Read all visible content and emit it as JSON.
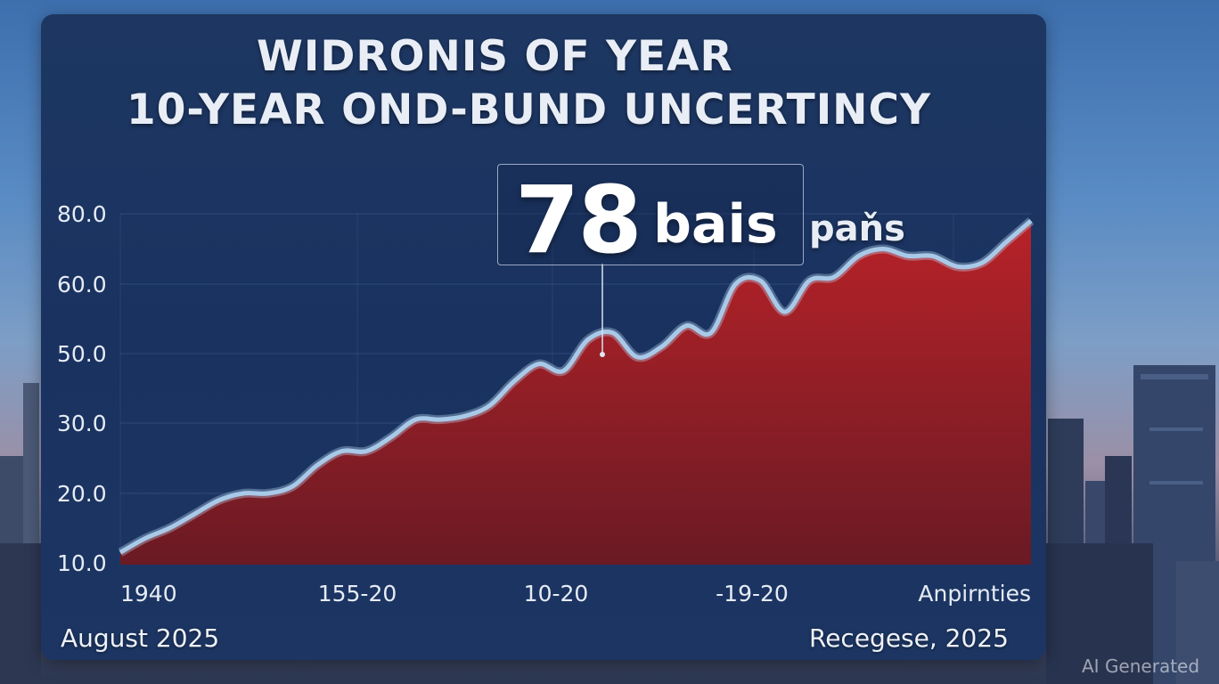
{
  "title_line1": "WIDRONIS OF YEAR",
  "title_line2": "10-YEAR OND-BUND UNCERTINCY",
  "callout": {
    "value": "78",
    "unit": "bais",
    "extra": "paňs"
  },
  "footer": {
    "left": "August 2025",
    "right": "Recegese, 2025"
  },
  "watermark": "AI Generated",
  "colors": {
    "panel": "#1b3461",
    "area_top": "#b82228",
    "area_bottom": "#6a1a24",
    "line": "#a9c9e8"
  },
  "chart_data": {
    "type": "area",
    "title": "WIDRONIS OF YEAR 10-YEAR OND-BUND UNCERTINCY",
    "xlabel": "",
    "ylabel": "",
    "y_ticks": [
      "80.0",
      "60.0",
      "50.0",
      "30.0",
      "20.0",
      "10.0"
    ],
    "x_tick_labels": [
      "1940",
      "155-20",
      "10-20",
      "-19-20",
      "Anpirnties"
    ],
    "grid": true,
    "series": [
      {
        "values": [
          11.5,
          13.5,
          15,
          17,
          19,
          20,
          20,
          21,
          24,
          26,
          26,
          28,
          31,
          31,
          32,
          35,
          42,
          47,
          45,
          52,
          53,
          49,
          51,
          54,
          53,
          60,
          61,
          56,
          61,
          62,
          68,
          70,
          68,
          68,
          65,
          66,
          72,
          78
        ]
      }
    ]
  }
}
